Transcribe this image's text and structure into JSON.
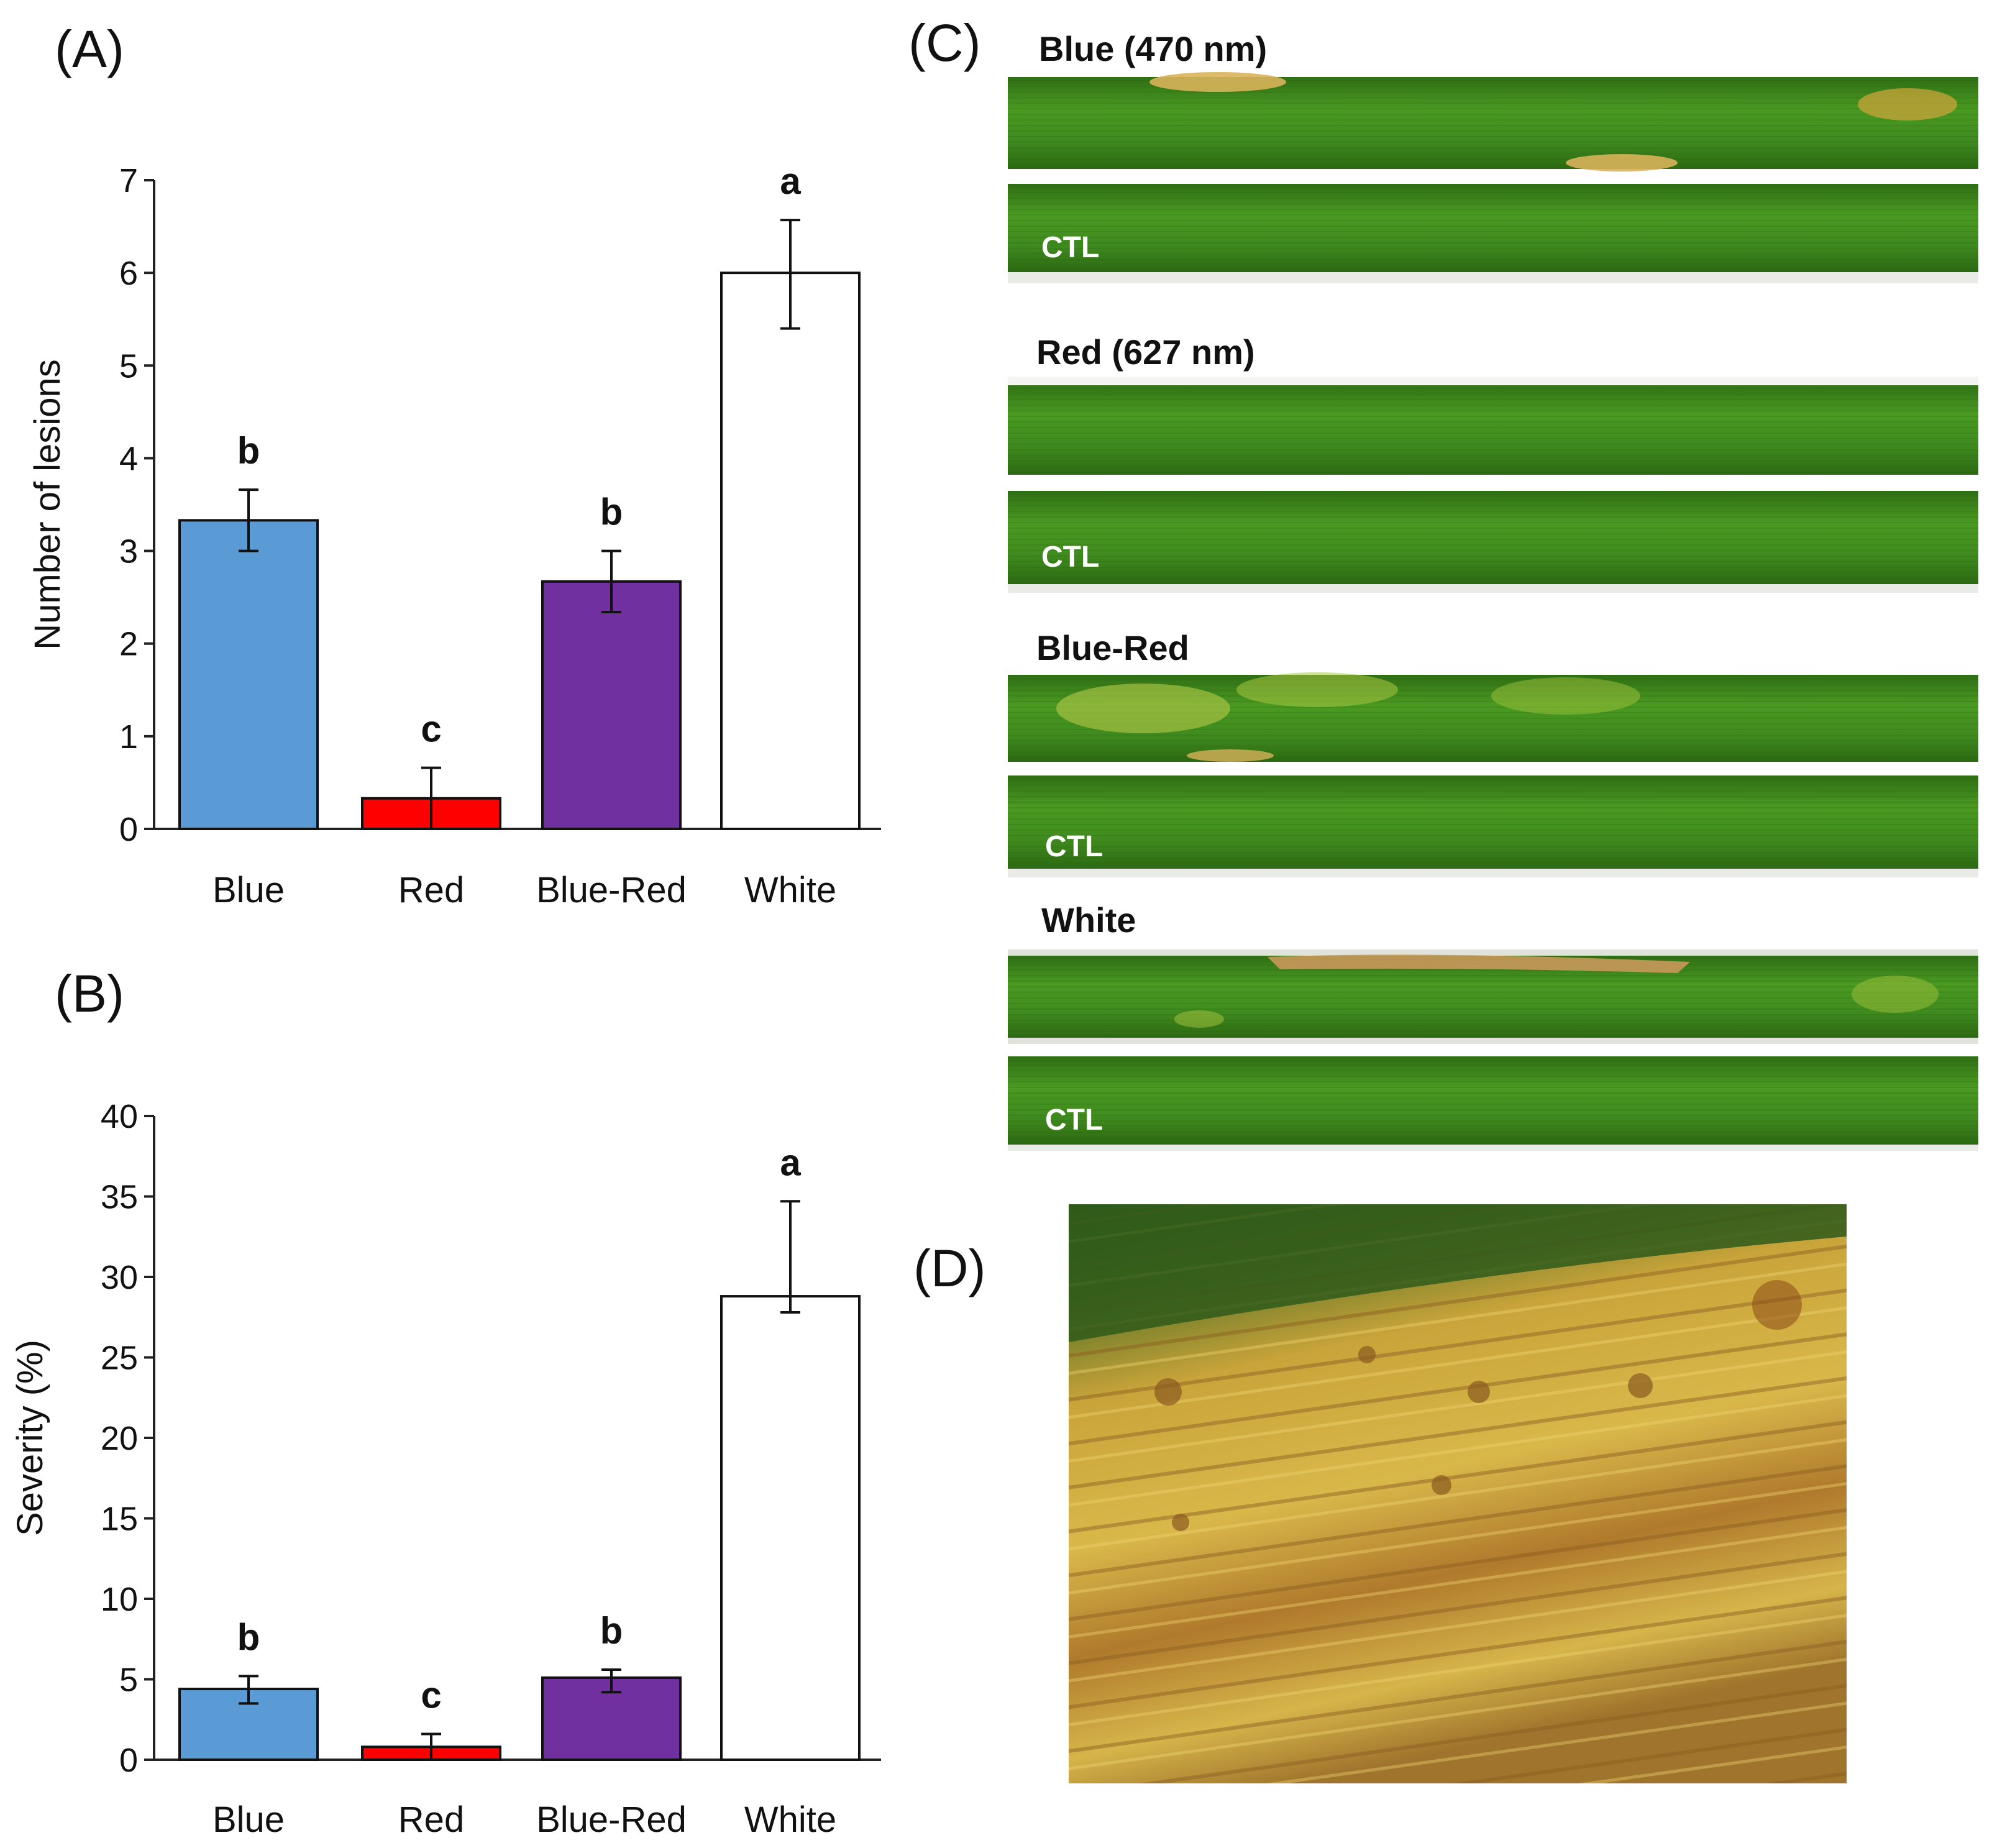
{
  "panels": {
    "A": "(A)",
    "B": "(B)",
    "C": "(C)",
    "D": "(D)"
  },
  "chart_data": [
    {
      "id": "A",
      "type": "bar",
      "title": "",
      "xlabel": "",
      "ylabel": "Number of lesions",
      "ylim": [
        0,
        7
      ],
      "yticks": [
        0,
        1,
        2,
        3,
        4,
        5,
        6,
        7
      ],
      "categories": [
        "Blue",
        "Red",
        "Blue-Red",
        "White"
      ],
      "values": [
        3.33,
        0.33,
        2.67,
        6.0
      ],
      "error_plus": [
        0.33,
        0.33,
        0.33,
        0.57
      ],
      "error_minus": [
        0.33,
        0.33,
        0.33,
        0.6
      ],
      "significance": [
        "b",
        "c",
        "b",
        "a"
      ],
      "colors": [
        "#5b9bd5",
        "#ff0000",
        "#7030a0",
        "#ffffff"
      ],
      "grid": false,
      "legend": "none"
    },
    {
      "id": "B",
      "type": "bar",
      "title": "",
      "xlabel": "",
      "ylabel": "Severity (%)",
      "ylim": [
        0,
        40
      ],
      "yticks": [
        0,
        5,
        10,
        15,
        20,
        25,
        30,
        35,
        40
      ],
      "categories": [
        "Blue",
        "Red",
        "Blue-Red",
        "White"
      ],
      "values": [
        4.4,
        0.8,
        5.1,
        28.8
      ],
      "error_plus": [
        0.8,
        0.8,
        0.5,
        5.9
      ],
      "error_minus": [
        0.9,
        0.8,
        0.9,
        1.0
      ],
      "significance": [
        "b",
        "c",
        "b",
        "a"
      ],
      "colors": [
        "#5b9bd5",
        "#ff0000",
        "#7030a0",
        "#ffffff"
      ],
      "grid": false,
      "legend": "none"
    }
  ],
  "leaf_photos": {
    "groups": [
      {
        "treatment": "Blue (470 nm)",
        "control": "CTL"
      },
      {
        "treatment": "Red (627 nm)",
        "control": "CTL"
      },
      {
        "treatment": "Blue-Red",
        "control": "CTL"
      },
      {
        "treatment": "White",
        "control": "CTL"
      }
    ],
    "leaf_color": "#3f8a1e",
    "lesion_color": "#d8b25a"
  },
  "closeup": {
    "description_colors": [
      "#c9a43a",
      "#8a5a20",
      "#2f5a1a"
    ]
  }
}
